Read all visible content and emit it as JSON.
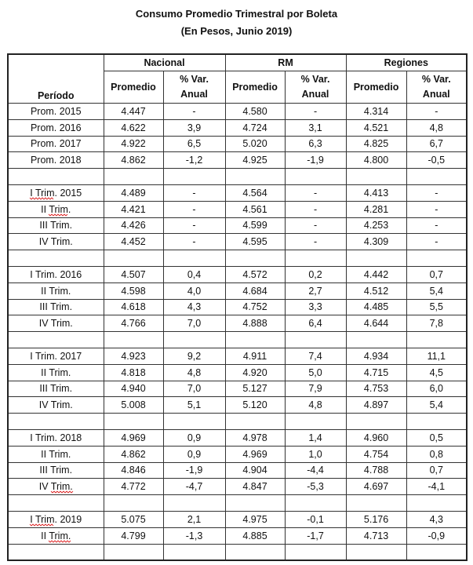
{
  "title": "Consumo Promedio Trimestral por Boleta",
  "subtitle": "(En Pesos, Junio 2019)",
  "header": {
    "period": "Período",
    "groups": [
      "Nacional",
      "RM",
      "Regiones"
    ],
    "promedio": "Promedio",
    "var_line1": "% Var.",
    "var_line2": "Anual"
  },
  "rows": [
    {
      "label": "Prom. 2015",
      "values": [
        "4.447",
        "-",
        "4.580",
        "-",
        "4.314",
        "-"
      ]
    },
    {
      "label": "Prom. 2016",
      "values": [
        "4.622",
        "3,9",
        "4.724",
        "3,1",
        "4.521",
        "4,8"
      ]
    },
    {
      "label": "Prom. 2017",
      "values": [
        "4.922",
        "6,5",
        "5.020",
        "6,3",
        "4.825",
        "6,7"
      ]
    },
    {
      "label": "Prom. 2018",
      "values": [
        "4.862",
        "-1,2",
        "4.925",
        "-1,9",
        "4.800",
        "-0,5"
      ]
    },
    {
      "label": "",
      "values": [
        "",
        "",
        "",
        "",
        "",
        ""
      ]
    },
    {
      "label": "I Trim. 2015",
      "spellcheck": "I Trim",
      "values": [
        "4.489",
        "-",
        "4.564",
        "-",
        "4.413",
        "-"
      ]
    },
    {
      "label": "II Trim.",
      "spellcheck": "Trim",
      "values": [
        "4.421",
        "-",
        "4.561",
        "-",
        "4.281",
        "-"
      ]
    },
    {
      "label": "III Trim.",
      "values": [
        "4.426",
        "-",
        "4.599",
        "-",
        "4.253",
        "-"
      ]
    },
    {
      "label": "IV Trim.",
      "values": [
        "4.452",
        "-",
        "4.595",
        "-",
        "4.309",
        "-"
      ]
    },
    {
      "label": "",
      "values": [
        "",
        "",
        "",
        "",
        "",
        ""
      ]
    },
    {
      "label": "I Trim. 2016",
      "values": [
        "4.507",
        "0,4",
        "4.572",
        "0,2",
        "4.442",
        "0,7"
      ]
    },
    {
      "label": "II Trim.",
      "values": [
        "4.598",
        "4,0",
        "4.684",
        "2,7",
        "4.512",
        "5,4"
      ]
    },
    {
      "label": "III Trim.",
      "values": [
        "4.618",
        "4,3",
        "4.752",
        "3,3",
        "4.485",
        "5,5"
      ]
    },
    {
      "label": "IV Trim.",
      "values": [
        "4.766",
        "7,0",
        "4.888",
        "6,4",
        "4.644",
        "7,8"
      ]
    },
    {
      "label": "",
      "values": [
        "",
        "",
        "",
        "",
        "",
        ""
      ]
    },
    {
      "label": "I Trim. 2017",
      "values": [
        "4.923",
        "9,2",
        "4.911",
        "7,4",
        "4.934",
        "11,1"
      ]
    },
    {
      "label": "II Trim.",
      "values": [
        "4.818",
        "4,8",
        "4.920",
        "5,0",
        "4.715",
        "4,5"
      ]
    },
    {
      "label": "III Trim.",
      "values": [
        "4.940",
        "7,0",
        "5.127",
        "7,9",
        "4.753",
        "6,0"
      ]
    },
    {
      "label": "IV Trim.",
      "values": [
        "5.008",
        "5,1",
        "5.120",
        "4,8",
        "4.897",
        "5,4"
      ]
    },
    {
      "label": "",
      "values": [
        "",
        "",
        "",
        "",
        "",
        ""
      ]
    },
    {
      "label": "I Trim. 2018",
      "values": [
        "4.969",
        "0,9",
        "4.978",
        "1,4",
        "4.960",
        "0,5"
      ]
    },
    {
      "label": "II Trim.",
      "values": [
        "4.862",
        "0,9",
        "4.969",
        "1,0",
        "4.754",
        "0,8"
      ]
    },
    {
      "label": "III Trim.",
      "values": [
        "4.846",
        "-1,9",
        "4.904",
        "-4,4",
        "4.788",
        "0,7"
      ]
    },
    {
      "label": "IV Trim.",
      "spellcheck": "Trim.",
      "values": [
        "4.772",
        "-4,7",
        "4.847",
        "-5,3",
        "4.697",
        "-4,1"
      ]
    },
    {
      "label": "",
      "values": [
        "",
        "",
        "",
        "",
        "",
        ""
      ]
    },
    {
      "label": "I Trim. 2019",
      "spellcheck": "I Trim",
      "values": [
        "5.075",
        "2,1",
        "4.975",
        "-0,1",
        "5.176",
        "4,3"
      ]
    },
    {
      "label": "II Trim.",
      "spellcheck": "Trim.",
      "values": [
        "4.799",
        "-1,3",
        "4.885",
        "-1,7",
        "4.713",
        "-0,9"
      ]
    },
    {
      "label": "",
      "values": [
        "",
        "",
        "",
        "",
        "",
        ""
      ]
    }
  ]
}
